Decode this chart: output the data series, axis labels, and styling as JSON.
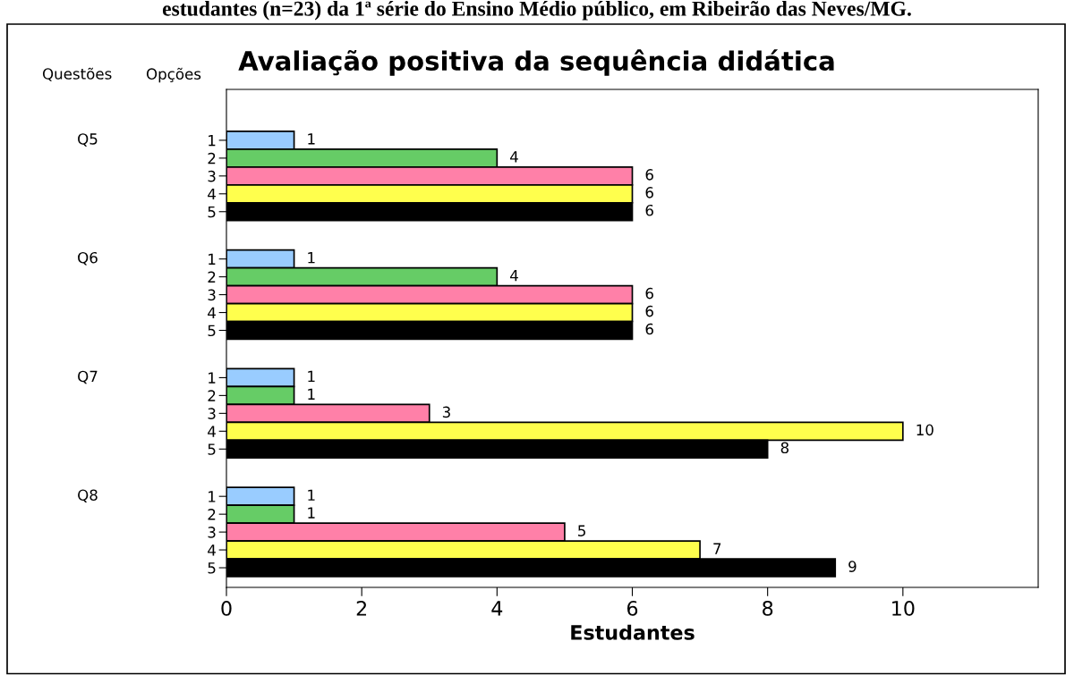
{
  "chart_data": {
    "type": "bar",
    "orientation": "horizontal",
    "title": "Avaliação positiva da sequência didática",
    "xlabel": "Estudantes",
    "categories": [
      "Q5",
      "Q6",
      "Q7",
      "Q8"
    ],
    "series": [
      {
        "name": "1",
        "color": "#99ccff",
        "values": [
          1,
          1,
          1,
          1
        ]
      },
      {
        "name": "2",
        "color": "#66cc66",
        "values": [
          4,
          4,
          1,
          1
        ]
      },
      {
        "name": "3",
        "color": "#ff80a8",
        "values": [
          6,
          6,
          3,
          5
        ]
      },
      {
        "name": "4",
        "color": "#ffff4d",
        "values": [
          6,
          6,
          10,
          7
        ]
      },
      {
        "name": "5",
        "color": "#000000",
        "values": [
          6,
          6,
          8,
          9
        ]
      }
    ],
    "xlim": [
      0,
      12
    ],
    "xticks": [
      0,
      2,
      4,
      6,
      8,
      10
    ],
    "grid": false,
    "legend": "left",
    "data_labels": true,
    "annotations": [
      "estudantes (n=23) da 1ª série do Ensino Médio público, em Ribeirão das Neves/MG.",
      "Questões",
      "Opções"
    ]
  }
}
